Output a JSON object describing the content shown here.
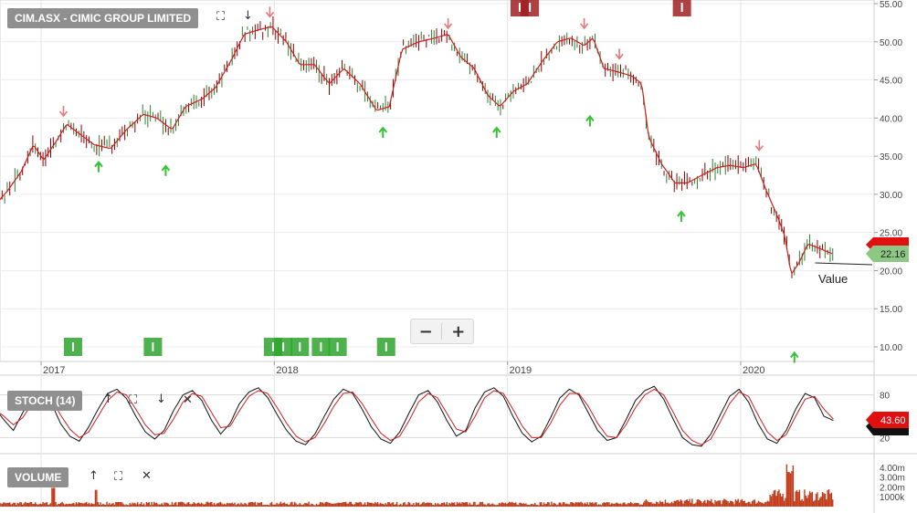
{
  "symbol_label": "CIM.ASX - CIMIC GROUP LIMITED",
  "stoch_label": "STOCH (14)",
  "volume_label": "VOLUME",
  "value_text": "Value",
  "price_badge": "22.16",
  "stoch_badge": "43.60",
  "zoom": {
    "minus": "−",
    "plus": "+"
  },
  "icons": {
    "expand": "⛶",
    "arrow_down": "↓",
    "arrow_up": "↑",
    "close": "✕"
  },
  "colors": {
    "price_line": "#cc1f1f",
    "candle_up": "#2e7d32",
    "candle_down": "#8b0000",
    "buy_arrow": "#35c236",
    "sell_arrow": "#e07a7a",
    "stoch_k": "#111111",
    "stoch_d": "#cc1f1f",
    "volume": "#c23a18",
    "badge_red": "#e01010",
    "badge_green": "#8cc784",
    "event_green": "#2ea52e",
    "event_red": "#a02020"
  },
  "chart_data": [
    {
      "type": "line",
      "title": "CIM.ASX - CIMIC GROUP LIMITED",
      "x_tick_labels": [
        "2017",
        "2018",
        "2019",
        "2020"
      ],
      "y_tick_labels": [
        "10.00",
        "15.00",
        "20.00",
        "25.00",
        "30.00",
        "35.00",
        "40.00",
        "45.00",
        "50.00",
        "55.00"
      ],
      "ylim": [
        8,
        55
      ],
      "grid": true,
      "series": [
        {
          "name": "",
          "points": [
            [
              "2016-10-20",
              28.5
            ],
            [
              "2016-11-10",
              30.5
            ],
            [
              "2016-12-01",
              33.0
            ],
            [
              "2016-12-20",
              36.5
            ],
            [
              "2017-01-05",
              34.5
            ],
            [
              "2017-01-25",
              37.0
            ],
            [
              "2017-02-10",
              39.2
            ],
            [
              "2017-03-01",
              38.0
            ],
            [
              "2017-03-25",
              36.5
            ],
            [
              "2017-04-20",
              36.0
            ],
            [
              "2017-05-15",
              38.5
            ],
            [
              "2017-06-10",
              40.5
            ],
            [
              "2017-07-01",
              40.0
            ],
            [
              "2017-07-25",
              38.5
            ],
            [
              "2017-08-15",
              41.5
            ],
            [
              "2017-09-10",
              42.5
            ],
            [
              "2017-10-01",
              44.0
            ],
            [
              "2017-10-25",
              47.5
            ],
            [
              "2017-11-15",
              51.0
            ],
            [
              "2017-12-05",
              51.5
            ],
            [
              "2017-12-28",
              52.0
            ],
            [
              "2018-01-20",
              50.0
            ],
            [
              "2018-02-10",
              47.0
            ],
            [
              "2018-03-05",
              47.0
            ],
            [
              "2018-03-28",
              44.5
            ],
            [
              "2018-04-20",
              46.5
            ],
            [
              "2018-05-15",
              44.5
            ],
            [
              "2018-06-10",
              41.0
            ],
            [
              "2018-06-30",
              41.5
            ],
            [
              "2018-07-20",
              49.0
            ],
            [
              "2018-08-15",
              50.0
            ],
            [
              "2018-09-10",
              50.5
            ],
            [
              "2018-09-30",
              51.0
            ],
            [
              "2018-10-20",
              48.0
            ],
            [
              "2018-11-10",
              46.5
            ],
            [
              "2018-12-01",
              43.0
            ],
            [
              "2018-12-20",
              41.5
            ],
            [
              "2019-01-10",
              43.5
            ],
            [
              "2019-02-01",
              44.5
            ],
            [
              "2019-02-25",
              47.5
            ],
            [
              "2019-03-20",
              50.0
            ],
            [
              "2019-04-10",
              50.5
            ],
            [
              "2019-05-01",
              49.5
            ],
            [
              "2019-05-15",
              50.5
            ],
            [
              "2019-06-01",
              46.5
            ],
            [
              "2019-06-25",
              46.0
            ],
            [
              "2019-07-15",
              45.5
            ],
            [
              "2019-07-30",
              44.5
            ],
            [
              "2019-08-10",
              37.5
            ],
            [
              "2019-08-30",
              34.0
            ],
            [
              "2019-09-20",
              31.5
            ],
            [
              "2019-10-10",
              31.5
            ],
            [
              "2019-11-01",
              32.5
            ],
            [
              "2019-11-25",
              33.5
            ],
            [
              "2019-12-15",
              33.8
            ],
            [
              "2020-01-05",
              33.5
            ],
            [
              "2020-01-25",
              34.0
            ],
            [
              "2020-02-10",
              30.5
            ],
            [
              "2020-02-28",
              27.0
            ],
            [
              "2020-03-10",
              24.5
            ],
            [
              "2020-03-20",
              19.5
            ],
            [
              "2020-04-01",
              21.0
            ],
            [
              "2020-04-15",
              23.5
            ],
            [
              "2020-05-01",
              23.0
            ],
            [
              "2020-05-15",
              22.5
            ],
            [
              "2020-05-25",
              22.16
            ]
          ]
        }
      ],
      "buy_signals": [
        [
          "2017-04-01",
          33.5
        ],
        [
          "2017-07-15",
          33.0
        ],
        [
          "2018-06-20",
          38.0
        ],
        [
          "2018-12-15",
          38.0
        ],
        [
          "2019-05-10",
          39.5
        ],
        [
          "2019-09-30",
          27.0
        ],
        [
          "2020-03-25",
          8.5
        ]
      ],
      "sell_signals": [
        [
          "2017-02-05",
          41.0
        ],
        [
          "2017-12-25",
          54.0
        ],
        [
          "2018-09-30",
          52.5
        ],
        [
          "2019-05-01",
          52.5
        ],
        [
          "2019-06-25",
          48.5
        ],
        [
          "2020-01-30",
          36.5
        ]
      ],
      "annotation": "Value",
      "last_value_badge": "22.16"
    },
    {
      "type": "line",
      "title": "STOCH (14)",
      "y_tick_labels": [
        "80",
        "20"
      ],
      "ylim": [
        0,
        100
      ],
      "last_value_badge": "43.60",
      "series": [
        {
          "name": "",
          "values": [
            62,
            45,
            30,
            55,
            78,
            85,
            70,
            40,
            22,
            15,
            35,
            60,
            82,
            88,
            75,
            50,
            28,
            18,
            30,
            58,
            80,
            86,
            72,
            45,
            25,
            40,
            68,
            84,
            90,
            76,
            52,
            30,
            15,
            10,
            25,
            50,
            74,
            88,
            82,
            60,
            35,
            18,
            12,
            28,
            55,
            80,
            86,
            70,
            44,
            22,
            30,
            62,
            84,
            90,
            78,
            50,
            26,
            14,
            22,
            48,
            76,
            88,
            80,
            55,
            30,
            16,
            20,
            45,
            72,
            86,
            92,
            74,
            46,
            20,
            10,
            8,
            25,
            52,
            78,
            88,
            70,
            40,
            18,
            12,
            30,
            60,
            82,
            76,
            50,
            44
          ]
        },
        {
          "name": "",
          "values": [
            60,
            50,
            38,
            48,
            68,
            80,
            75,
            52,
            32,
            20,
            28,
            50,
            72,
            84,
            80,
            60,
            38,
            24,
            26,
            46,
            70,
            82,
            78,
            56,
            34,
            36,
            58,
            78,
            86,
            82,
            62,
            40,
            22,
            14,
            20,
            40,
            64,
            82,
            84,
            68,
            46,
            26,
            16,
            22,
            44,
            70,
            82,
            76,
            54,
            32,
            28,
            50,
            76,
            86,
            82,
            60,
            36,
            20,
            20,
            40,
            66,
            82,
            82,
            64,
            40,
            22,
            20,
            38,
            62,
            80,
            88,
            80,
            56,
            30,
            16,
            10,
            18,
            42,
            68,
            84,
            78,
            52,
            28,
            16,
            24,
            50,
            74,
            78,
            60,
            46
          ]
        }
      ]
    },
    {
      "type": "bar",
      "title": "VOLUME",
      "y_tick_labels": [
        "4.00m",
        "3.00m",
        "2.00m",
        "1000k"
      ],
      "ylim": [
        0,
        5000000
      ]
    }
  ]
}
